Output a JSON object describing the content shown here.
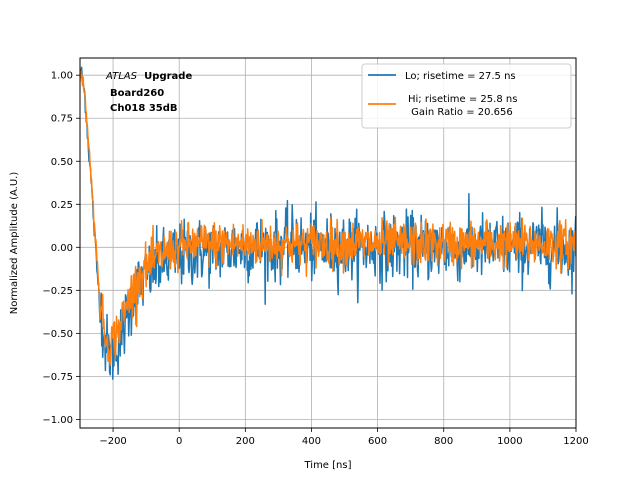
{
  "chart_data": {
    "type": "line",
    "xlabel": "Time [ns]",
    "ylabel": "Normalized Amplitude (A.U.)",
    "xlim": [
      -300,
      1200
    ],
    "ylim": [
      -1.05,
      1.1
    ],
    "xticks": [
      -200,
      0,
      200,
      400,
      600,
      800,
      1000,
      1200
    ],
    "xtick_labels": [
      "−200",
      "0",
      "200",
      "400",
      "600",
      "800",
      "1000",
      "1200"
    ],
    "yticks": [
      -1.0,
      -0.75,
      -0.5,
      -0.25,
      0.0,
      0.25,
      0.5,
      0.75,
      1.0
    ],
    "ytick_labels": [
      "−1.00",
      "−0.75",
      "−0.50",
      "−0.25",
      "0.00",
      "0.25",
      "0.50",
      "0.75",
      "1.00"
    ],
    "grid": true,
    "legend_position": "upper-right",
    "annotation": {
      "atlas": "ATLAS",
      "upgrade": "Upgrade",
      "board": "Board260",
      "channel": "Ch018 35dB"
    },
    "series": [
      {
        "name": "Lo; risetime = 27.5 ns",
        "color": "#1f77b4",
        "x": [
          -295,
          -285,
          -275,
          -265,
          -255,
          -248,
          -240,
          -232,
          -225,
          -215,
          -205,
          -195,
          -185,
          -175,
          -165,
          -155,
          -145,
          -135,
          -120,
          -100,
          -80,
          -60,
          -40,
          -20,
          0,
          25,
          50,
          75,
          100,
          125,
          150,
          175,
          200,
          225,
          250,
          275,
          300,
          325,
          355,
          360,
          370,
          400,
          430,
          460,
          490,
          520,
          560,
          600,
          640,
          680,
          720,
          760,
          800,
          840,
          880,
          920,
          960,
          1000,
          1040,
          1080,
          1120,
          1160,
          1200
        ],
        "values": [
          1.0,
          0.88,
          0.6,
          0.35,
          0.05,
          -0.15,
          -0.3,
          -0.45,
          -0.55,
          -0.6,
          -0.62,
          -0.6,
          -0.55,
          -0.5,
          -0.45,
          -0.38,
          -0.32,
          -0.27,
          -0.22,
          -0.17,
          -0.13,
          -0.1,
          -0.08,
          -0.06,
          -0.05,
          -0.04,
          -0.03,
          -0.02,
          -0.02,
          -0.01,
          -0.01,
          0.0,
          0.0,
          0.0,
          0.0,
          0.0,
          0.0,
          0.01,
          0.05,
          0.0,
          0.0,
          0.0,
          0.0,
          0.0,
          0.0,
          0.0,
          0.0,
          0.0,
          0.0,
          0.0,
          0.0,
          0.0,
          0.0,
          0.0,
          0.0,
          0.0,
          0.0,
          0.0,
          0.0,
          0.0,
          0.0,
          0.0,
          0.0
        ]
      },
      {
        "name": "Hi; risetime = 25.8 ns\n Gain Ratio = 20.656",
        "color": "#ff7f0e",
        "x": [
          -295,
          -285,
          -275,
          -265,
          -255,
          -248,
          -240,
          -232,
          -225,
          -215,
          -205,
          -195,
          -185,
          -175,
          -165,
          -155,
          -145,
          -135,
          -120,
          -100,
          -80,
          -60,
          -40,
          -20,
          0,
          25,
          50,
          75,
          100,
          125,
          150,
          175,
          200,
          225,
          250,
          275,
          300,
          325,
          355,
          360,
          370,
          400,
          430,
          460,
          490,
          520,
          560,
          600,
          640,
          680,
          720,
          760,
          800,
          840,
          880,
          920,
          960,
          1000,
          1040,
          1080,
          1120,
          1160,
          1200
        ],
        "values": [
          1.0,
          0.9,
          0.62,
          0.38,
          0.1,
          -0.1,
          -0.28,
          -0.42,
          -0.5,
          -0.55,
          -0.55,
          -0.52,
          -0.48,
          -0.43,
          -0.38,
          -0.32,
          -0.27,
          -0.22,
          -0.17,
          -0.12,
          -0.08,
          -0.05,
          -0.03,
          -0.01,
          0.0,
          0.01,
          0.02,
          0.02,
          0.02,
          0.02,
          0.02,
          0.02,
          0.02,
          0.02,
          0.02,
          0.02,
          0.02,
          0.02,
          0.02,
          0.02,
          0.02,
          0.02,
          0.02,
          0.02,
          0.02,
          0.02,
          0.02,
          0.02,
          0.02,
          0.02,
          0.02,
          0.02,
          0.02,
          0.02,
          0.02,
          0.02,
          0.02,
          0.02,
          0.02,
          0.02,
          0.02,
          0.02,
          0.02
        ]
      }
    ]
  }
}
